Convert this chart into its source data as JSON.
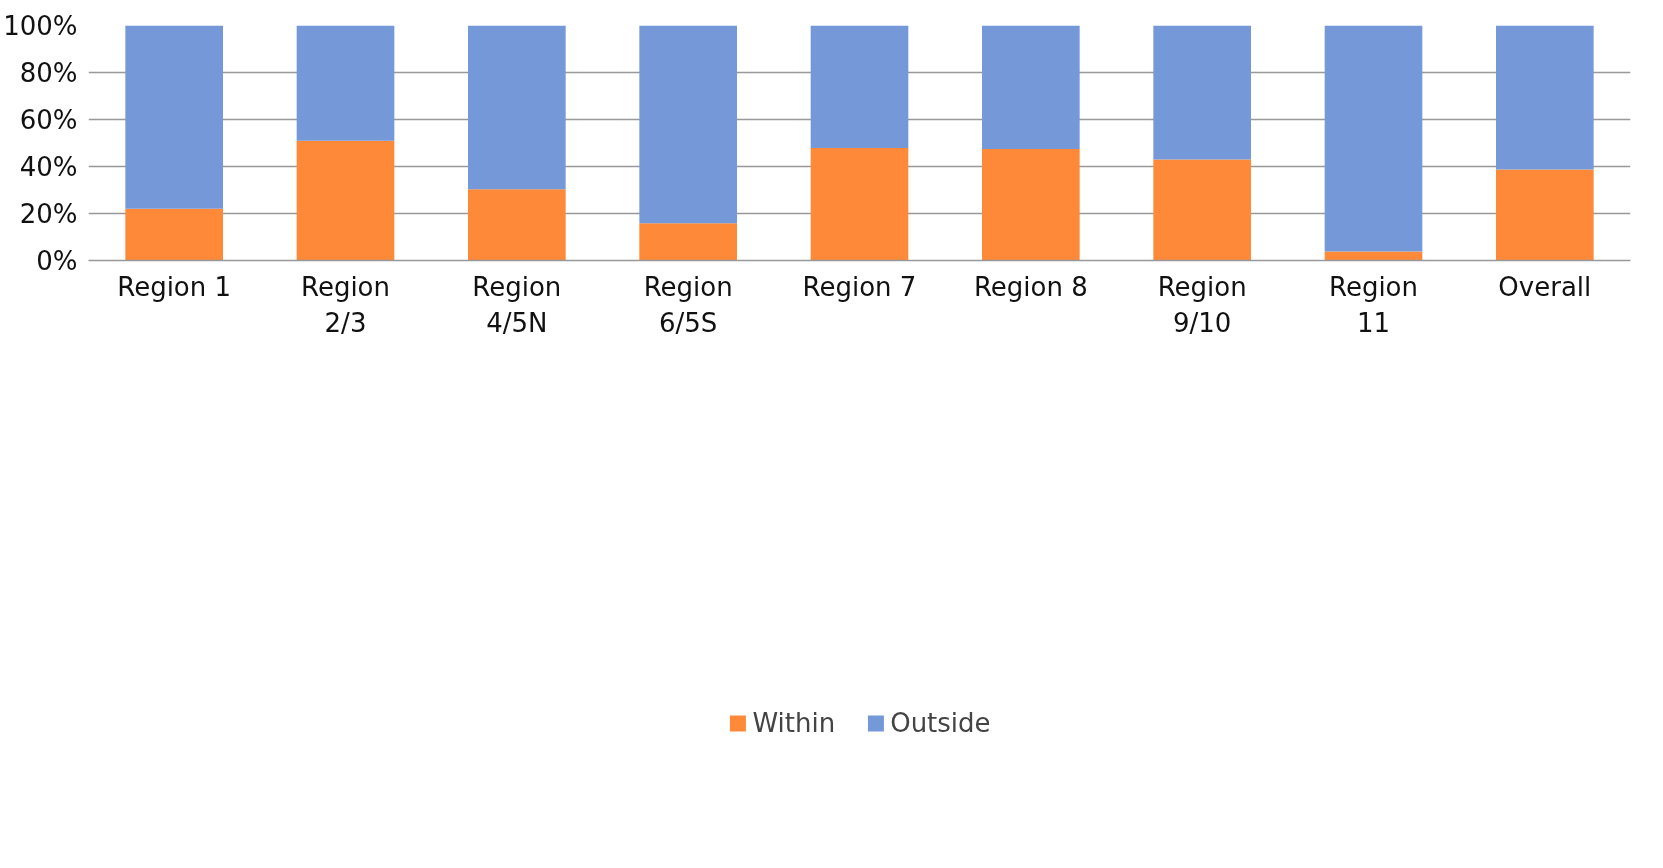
{
  "chart_data": {
    "type": "bar",
    "stacked": true,
    "categories": [
      "Region 1",
      "Region 2/3",
      "Region 4/5N",
      "Region 6/5S",
      "Region 7",
      "Region 8",
      "Region 9/10",
      "Region 11",
      "Overall"
    ],
    "series": [
      {
        "name": "Within",
        "color": "#fd8939",
        "values": [
          22.0,
          51.0,
          30.3,
          15.9,
          47.9,
          47.5,
          43.0,
          3.8,
          38.7
        ]
      },
      {
        "name": "Outside",
        "color": "#7599d8",
        "values": [
          78.0,
          49.0,
          69.7,
          84.1,
          52.1,
          52.5,
          57.0,
          96.2,
          61.3
        ]
      }
    ],
    "ylim": [
      0,
      100
    ],
    "yticks": [
      {
        "value": 0,
        "label": "0%"
      },
      {
        "value": 20,
        "label": "20%"
      },
      {
        "value": 40,
        "label": "40%"
      },
      {
        "value": 60,
        "label": "60%"
      },
      {
        "value": 80,
        "label": "80%"
      },
      {
        "value": 100,
        "label": "100%"
      }
    ],
    "grid": "y",
    "legend": "bottom"
  }
}
